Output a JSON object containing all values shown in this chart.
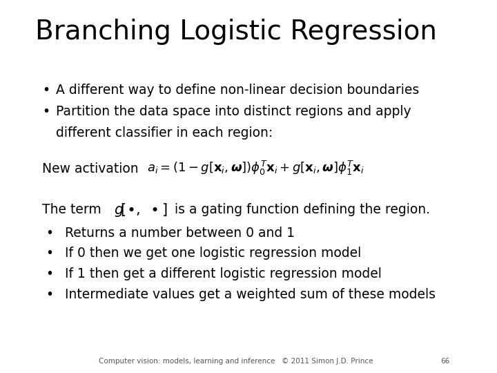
{
  "title": "Branching Logistic Regression",
  "background_color": "#ffffff",
  "title_fontsize": 28,
  "bullet1": "A different way to define non-linear decision boundaries",
  "bullet2a": "Partition the data space into distinct regions and apply",
  "bullet2b": "different classifier in each region:",
  "new_activation_label": "New activation",
  "the_term_prefix": "The term",
  "the_term_suffix": "is a gating function defining the region.",
  "sub_bullet1": "Returns a number between 0 and 1",
  "sub_bullet2": "If 0 then we get one logistic regression model",
  "sub_bullet3": "If 1 then get a different logistic regression model",
  "sub_bullet4": "Intermediate values get a weighted sum of these models",
  "footer": "Computer vision: models, learning and inference   © 2011 Simon J.D. Prince",
  "footer_page": "66",
  "text_color": "#000000",
  "footer_color": "#555555"
}
